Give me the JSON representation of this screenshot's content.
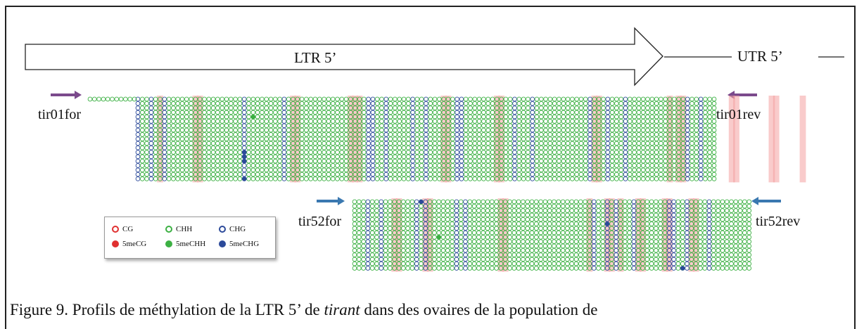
{
  "labels": {
    "ltr": "LTR 5’",
    "utr": "UTR 5’",
    "tir01for": "tir01for",
    "tir01rev": "tir01rev",
    "tir52for": "tir52for",
    "tir52rev": "tir52rev"
  },
  "legend": {
    "cg": "CG",
    "chh": "CHH",
    "chg": "CHG",
    "me_cg": "5meCG",
    "me_chh": "5meCHH",
    "me_chg": "5meCHG"
  },
  "colors": {
    "cg": "#f08080",
    "chh": "#3cb043",
    "chg": "#2c4a9a",
    "primer_tir01": "#7b4a8c",
    "primer_tir52": "#3a78b0",
    "legend_cg": "#e03030"
  },
  "caption": {
    "prefix": "Figure 9. Profils de méthylation de la LTR 5’ de ",
    "italic": "tirant",
    "suffix": " dans des ovaires de la population de"
  }
}
